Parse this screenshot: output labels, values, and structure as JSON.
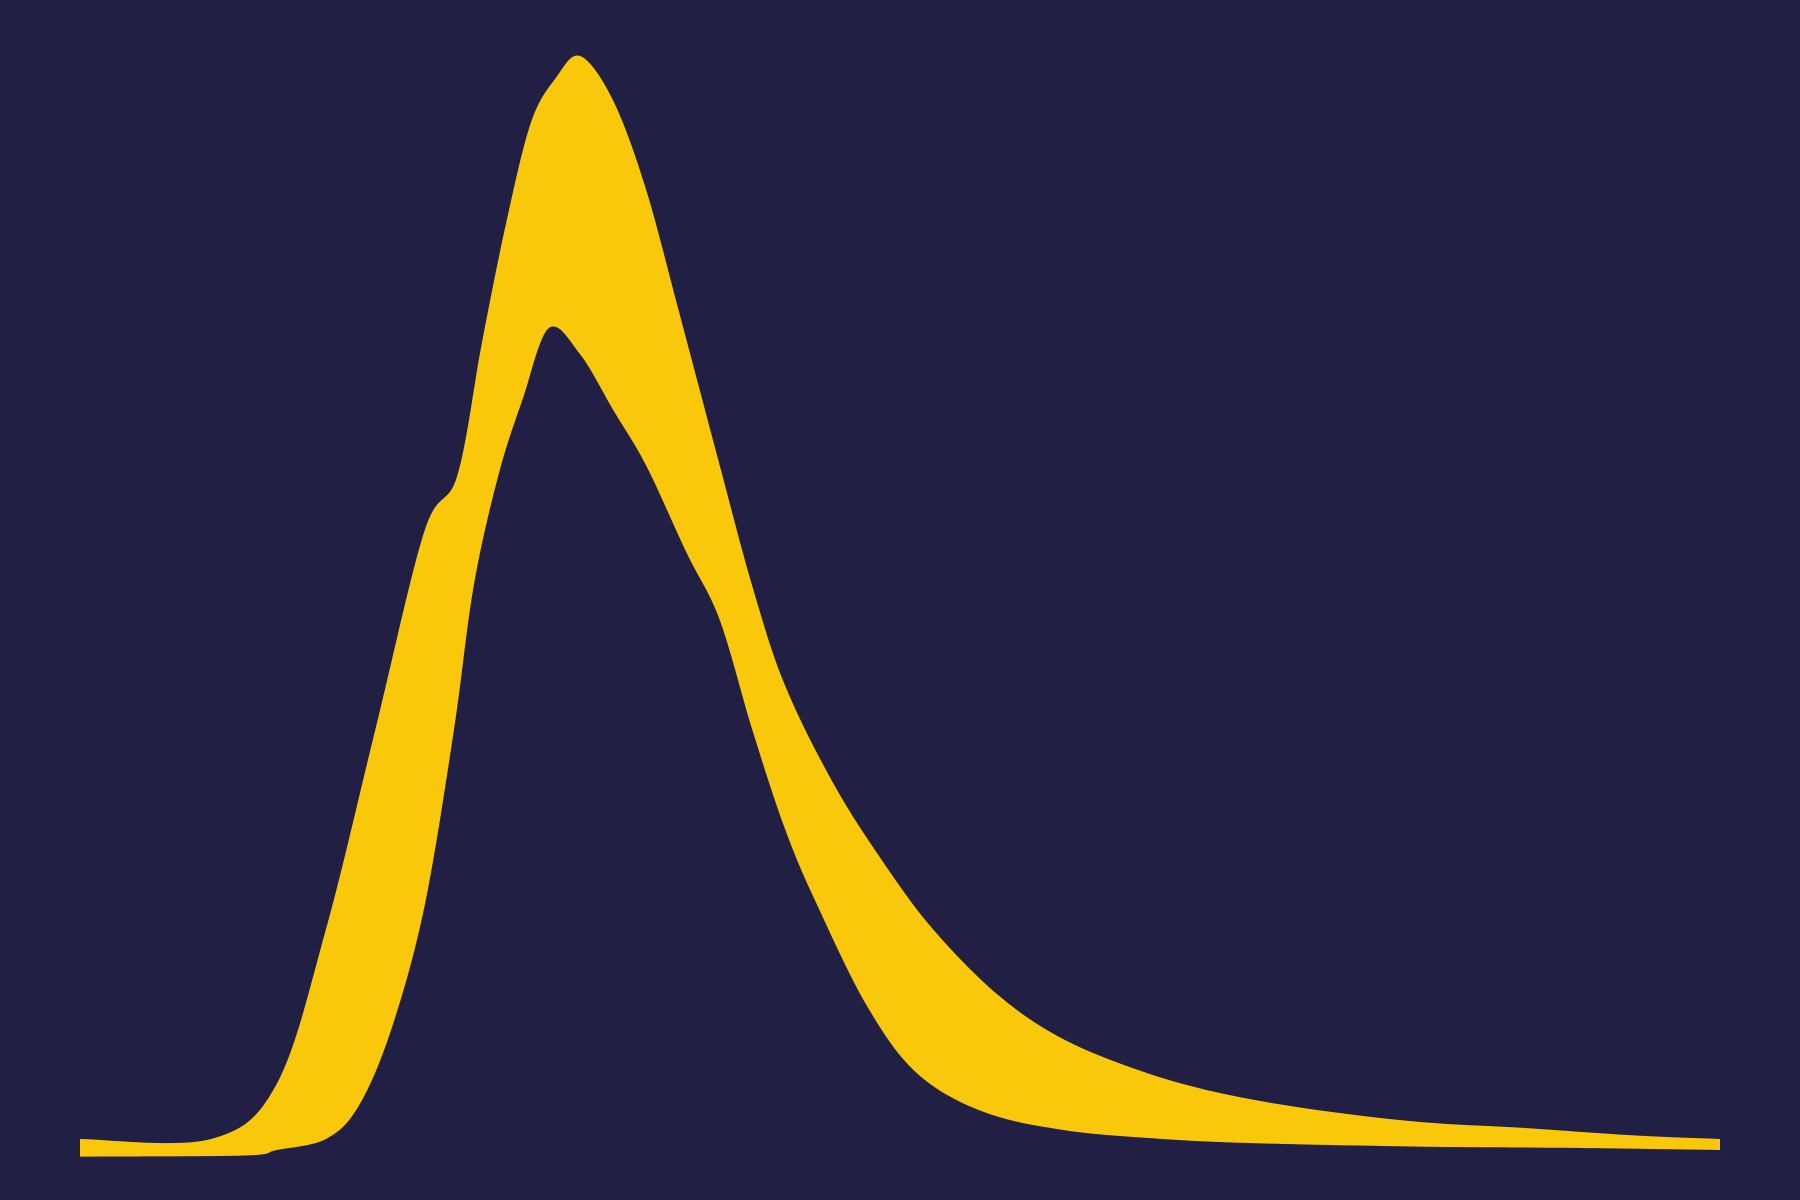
{
  "chart_data": {
    "type": "area",
    "title": "",
    "xlabel": "",
    "ylabel": "",
    "grid": false,
    "legend": "none",
    "xlim": [
      0,
      100
    ],
    "ylim": [
      0,
      100
    ],
    "colors": {
      "background": "#221f44",
      "fill": "#f9c80b"
    },
    "series": [
      {
        "values_upper": [
          [
            0,
            1
          ],
          [
            8,
            1
          ],
          [
            12,
            6
          ],
          [
            15,
            20
          ],
          [
            18,
            38
          ],
          [
            21,
            56
          ],
          [
            23,
            61
          ],
          [
            24.5,
            73
          ],
          [
            26,
            84
          ],
          [
            27.5,
            93
          ],
          [
            29,
            97
          ],
          [
            30.5,
            99
          ],
          [
            32.5,
            95
          ],
          [
            34.5,
            87
          ],
          [
            36.5,
            76
          ],
          [
            39,
            62
          ],
          [
            41,
            51
          ],
          [
            43,
            42
          ],
          [
            46,
            33
          ],
          [
            49,
            26
          ],
          [
            52,
            20
          ],
          [
            56,
            14
          ],
          [
            60,
            10
          ],
          [
            65,
            7
          ],
          [
            70,
            5
          ],
          [
            76,
            3.5
          ],
          [
            82,
            2.5
          ],
          [
            88,
            2
          ],
          [
            95,
            1.3
          ],
          [
            100,
            1
          ]
        ],
        "values_lower": [
          [
            0,
            -0.6
          ],
          [
            10,
            -0.5
          ],
          [
            12,
            0
          ],
          [
            15,
            1
          ],
          [
            17,
            4
          ],
          [
            19,
            11
          ],
          [
            21,
            22
          ],
          [
            22.8,
            38
          ],
          [
            24,
            51
          ],
          [
            25.5,
            61
          ],
          [
            27,
            68
          ],
          [
            28.6,
            74.4
          ],
          [
            30.5,
            72
          ],
          [
            32.5,
            67
          ],
          [
            34.5,
            62
          ],
          [
            37,
            54
          ],
          [
            39,
            48
          ],
          [
            41,
            38
          ],
          [
            43,
            29
          ],
          [
            45,
            22
          ],
          [
            48,
            13
          ],
          [
            51,
            7
          ],
          [
            55,
            3.5
          ],
          [
            60,
            1.8
          ],
          [
            66,
            1
          ],
          [
            72,
            0.6
          ],
          [
            82,
            0.3
          ],
          [
            90,
            0.2
          ],
          [
            100,
            0
          ]
        ]
      }
    ]
  }
}
